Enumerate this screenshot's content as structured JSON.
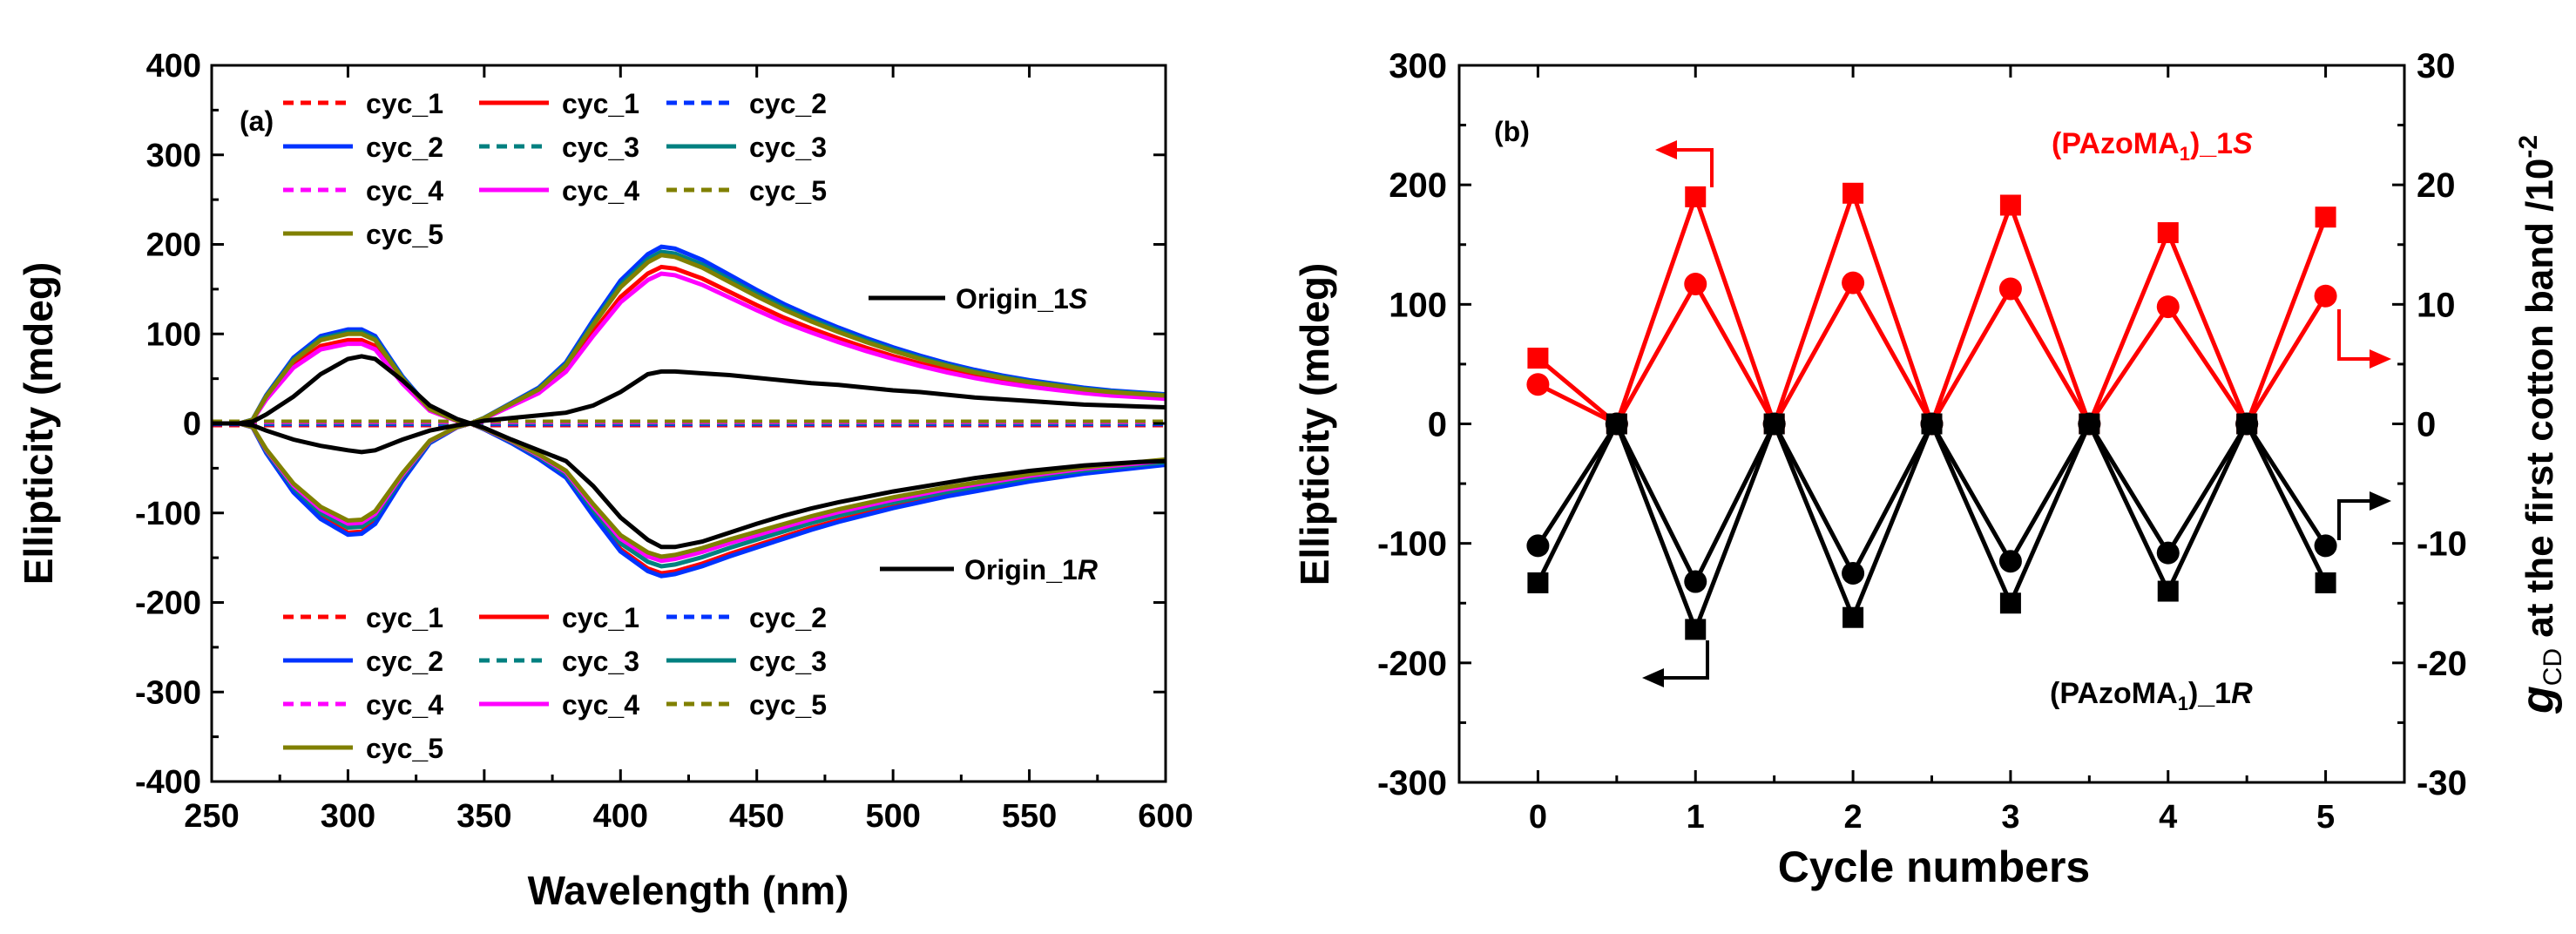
{
  "chart_data": [
    {
      "panel": "a",
      "panel_label": "(a)",
      "type": "line",
      "xlabel": "Wavelength (nm)",
      "ylabel": "Ellipticity (mdeg)",
      "xlim": [
        250,
        600
      ],
      "ylim": [
        -400,
        400
      ],
      "x_ticks": [
        250,
        300,
        350,
        400,
        450,
        500,
        550,
        600
      ],
      "y_ticks": [
        -400,
        -300,
        -200,
        -100,
        0,
        100,
        200,
        300,
        400
      ],
      "origin_labels": {
        "S": {
          "text": "Origin_1",
          "suffix": "S"
        },
        "R": {
          "text": "Origin_1",
          "suffix": "R"
        }
      },
      "x": [
        250,
        260,
        265,
        270,
        280,
        290,
        300,
        305,
        310,
        320,
        330,
        340,
        345,
        350,
        360,
        370,
        380,
        390,
        400,
        410,
        415,
        420,
        430,
        440,
        450,
        460,
        470,
        480,
        490,
        500,
        510,
        520,
        530,
        540,
        550,
        560,
        570,
        580,
        590,
        600
      ],
      "shapes": {
        "S": [
          0,
          0,
          4,
          30,
          70,
          93,
          100,
          100,
          93,
          50,
          16,
          3,
          0,
          6,
          22,
          38,
          65,
          110,
          152,
          180,
          188,
          186,
          174,
          158,
          142,
          127,
          114,
          102,
          91,
          81,
          72,
          64,
          57,
          51,
          46,
          42,
          38,
          35,
          33,
          31
        ],
        "R": [
          0,
          0,
          -4,
          -30,
          -70,
          -97,
          -113,
          -112,
          -102,
          -58,
          -20,
          -4,
          0,
          -6,
          -20,
          -36,
          -55,
          -94,
          -130,
          -150,
          -155,
          -153,
          -145,
          -135,
          -126,
          -117,
          -108,
          -100,
          -93,
          -86,
          -80,
          -74,
          -69,
          -64,
          -59,
          -55,
          -51,
          -48,
          -45,
          -42
        ]
      },
      "origin_S": [
        0,
        0,
        -2,
        -8,
        -18,
        -25,
        -30,
        -32,
        -30,
        -18,
        -8,
        -2,
        0,
        3,
        6,
        9,
        12,
        20,
        35,
        55,
        58,
        58,
        56,
        54,
        51,
        48,
        45,
        43,
        40,
        37,
        35,
        32,
        29,
        27,
        25,
        23,
        21,
        20,
        19,
        18
      ],
      "origin_R": [
        0,
        0,
        2,
        10,
        30,
        55,
        72,
        75,
        72,
        48,
        20,
        5,
        0,
        -5,
        -18,
        -30,
        -42,
        -70,
        -105,
        -130,
        -138,
        -138,
        -132,
        -122,
        -112,
        -103,
        -95,
        -88,
        -82,
        -76,
        -71,
        -66,
        -61,
        -57,
        -53,
        -50,
        -47,
        -45,
        -43,
        -42
      ],
      "series_S": [
        {
          "name": "cyc_1",
          "style": "solid",
          "color": "#ff0000",
          "scale": 0.93
        },
        {
          "name": "cyc_2",
          "style": "solid",
          "color": "#0033ff",
          "scale": 1.05
        },
        {
          "name": "cyc_3",
          "style": "solid",
          "color": "#008080",
          "scale": 1.02
        },
        {
          "name": "cyc_4",
          "style": "solid",
          "color": "#ff00ff",
          "scale": 0.89
        },
        {
          "name": "cyc_5",
          "style": "solid",
          "color": "#808000",
          "scale": 1.0
        }
      ],
      "series_R": [
        {
          "name": "cyc_1",
          "style": "solid",
          "color": "#ff0000",
          "scale": 1.08
        },
        {
          "name": "cyc_2",
          "style": "solid",
          "color": "#0033ff",
          "scale": 1.1
        },
        {
          "name": "cyc_3",
          "style": "solid",
          "color": "#008080",
          "scale": 1.03
        },
        {
          "name": "cyc_4",
          "style": "solid",
          "color": "#ff00ff",
          "scale": 0.99
        },
        {
          "name": "cyc_5",
          "style": "solid",
          "color": "#808000",
          "scale": 0.96
        }
      ],
      "legend_top": [
        {
          "name": "cyc_1",
          "style": "dashed",
          "color": "#ff0000"
        },
        {
          "name": "cyc_1",
          "style": "solid",
          "color": "#ff0000"
        },
        {
          "name": "cyc_2",
          "style": "dashed",
          "color": "#0033ff"
        },
        {
          "name": "cyc_2",
          "style": "solid",
          "color": "#0033ff"
        },
        {
          "name": "cyc_3",
          "style": "dashed",
          "color": "#008080"
        },
        {
          "name": "cyc_3",
          "style": "solid",
          "color": "#008080"
        },
        {
          "name": "cyc_4",
          "style": "dashed",
          "color": "#ff00ff"
        },
        {
          "name": "cyc_4",
          "style": "solid",
          "color": "#ff00ff"
        },
        {
          "name": "cyc_5",
          "style": "dashed",
          "color": "#808000"
        },
        {
          "name": "cyc_5",
          "style": "solid",
          "color": "#808000"
        }
      ],
      "legend_bottom": [
        {
          "name": "cyc_1",
          "style": "dashed",
          "color": "#ff0000"
        },
        {
          "name": "cyc_1",
          "style": "solid",
          "color": "#ff0000"
        },
        {
          "name": "cyc_2",
          "style": "dashed",
          "color": "#0033ff"
        },
        {
          "name": "cyc_2",
          "style": "solid",
          "color": "#0033ff"
        },
        {
          "name": "cyc_3",
          "style": "dashed",
          "color": "#008080"
        },
        {
          "name": "cyc_3",
          "style": "solid",
          "color": "#008080"
        },
        {
          "name": "cyc_4",
          "style": "dashed",
          "color": "#ff00ff"
        },
        {
          "name": "cyc_4",
          "style": "solid",
          "color": "#ff00ff"
        },
        {
          "name": "cyc_5",
          "style": "dashed",
          "color": "#808000"
        },
        {
          "name": "cyc_5",
          "style": "solid",
          "color": "#808000"
        }
      ]
    },
    {
      "panel": "b",
      "panel_label": "(b)",
      "type": "line",
      "xlabel": "Cycle numbers",
      "ylabel": "Ellipticity (mdeg)",
      "y2label_g": "g",
      "y2label_sub": "CD",
      "y2label_rest": " at the first cotton band /10",
      "y2label_sup": "-2",
      "xlim": [
        -0.5,
        5.5
      ],
      "ylim": [
        -300,
        300
      ],
      "y2lim": [
        -30,
        30
      ],
      "x_ticks": [
        0,
        1,
        2,
        3,
        4,
        5
      ],
      "y_ticks": [
        -300,
        -200,
        -100,
        0,
        100,
        200,
        300
      ],
      "y2_ticks": [
        -30,
        -20,
        -10,
        0,
        10,
        20,
        30
      ],
      "x": [
        0,
        0.5,
        1,
        1.5,
        2,
        2.5,
        3,
        3.5,
        4,
        4.5,
        5
      ],
      "series": [
        {
          "name": "(PAzoMA1)_1S ellipticity",
          "axis": "left",
          "marker": "square",
          "color": "#ff0000",
          "values": [
            55,
            0,
            190,
            0,
            193,
            0,
            183,
            0,
            160,
            0,
            173
          ]
        },
        {
          "name": "(PAzoMA1)_1S gCD",
          "axis": "right",
          "marker": "circle",
          "color": "#ff0000",
          "values": [
            3.3,
            0,
            11.7,
            0,
            11.8,
            0,
            11.3,
            0,
            9.8,
            0,
            10.7
          ]
        },
        {
          "name": "(PAzoMA1)_1R ellipticity",
          "axis": "left",
          "marker": "square",
          "color": "#000000",
          "values": [
            -133,
            0,
            -172,
            0,
            -162,
            0,
            -150,
            0,
            -140,
            0,
            -133
          ]
        },
        {
          "name": "(PAzoMA1)_1R gCD",
          "axis": "right",
          "marker": "circle",
          "color": "#000000",
          "values": [
            -10.2,
            0,
            -13.2,
            0,
            -12.5,
            0,
            -11.5,
            0,
            -10.8,
            0,
            -10.2
          ]
        }
      ],
      "annotation_S": {
        "text": "(PAzoMA",
        "sub": "1",
        "tail": ")_1",
        "ital": "S",
        "color": "#ff0000"
      },
      "annotation_R": {
        "text": "(PAzoMA",
        "sub": "1",
        "tail": ")_1",
        "ital": "R",
        "color": "#000000"
      }
    }
  ]
}
